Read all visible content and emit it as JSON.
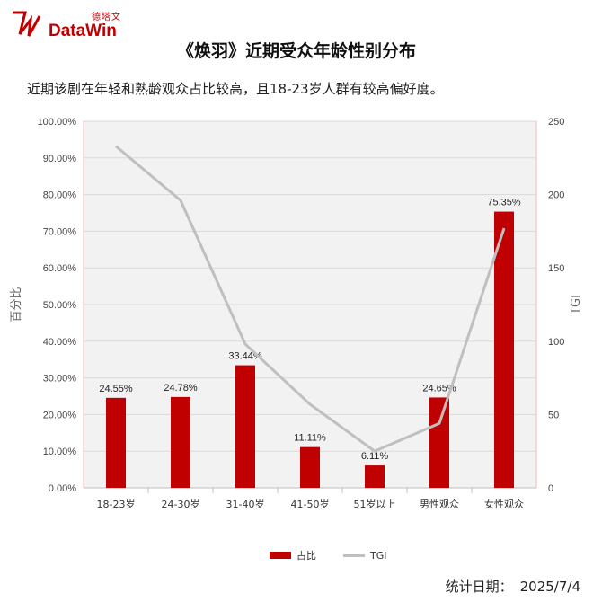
{
  "logo": {
    "cn": "德塔文",
    "en": "DataWin"
  },
  "header": {
    "title": "《焕羽》近期受众年龄性别分布",
    "subtitle": "近期该剧在年轻和熟龄观众占比较高，且18-23岁人群有较高偏好度。"
  },
  "footer": {
    "label": "统计日期：",
    "date": "2025/7/4"
  },
  "colors": {
    "bar": "#c00000",
    "line": "#bfbfbf",
    "grid": "#d9d9d9",
    "axis_line": "#f4b6b6"
  },
  "chart_data": {
    "type": "bar",
    "categories": [
      "18-23岁",
      "24-30岁",
      "31-40岁",
      "41-50岁",
      "51岁以上",
      "男性观众",
      "女性观众"
    ],
    "series": [
      {
        "name": "占比",
        "type": "bar",
        "axis": "left",
        "values": [
          24.55,
          24.78,
          33.44,
          11.11,
          6.11,
          24.65,
          75.35
        ],
        "labels": [
          "24.55%",
          "24.78%",
          "33.44%",
          "11.11%",
          "6.11%",
          "24.65%",
          "75.35%"
        ]
      },
      {
        "name": "TGI",
        "type": "line",
        "axis": "right",
        "values": [
          233,
          196,
          98,
          57,
          25,
          44,
          177
        ]
      }
    ],
    "ylabel": "百分比",
    "y2label": "TGI",
    "ylim": [
      0,
      100
    ],
    "y2lim": [
      0,
      250
    ],
    "yticks": [
      "0.00%",
      "10.00%",
      "20.00%",
      "30.00%",
      "40.00%",
      "50.00%",
      "60.00%",
      "70.00%",
      "80.00%",
      "90.00%",
      "100.00%"
    ],
    "y2ticks": [
      "0",
      "50",
      "100",
      "150",
      "200",
      "250"
    ],
    "grid": true,
    "legend": "bottom"
  }
}
